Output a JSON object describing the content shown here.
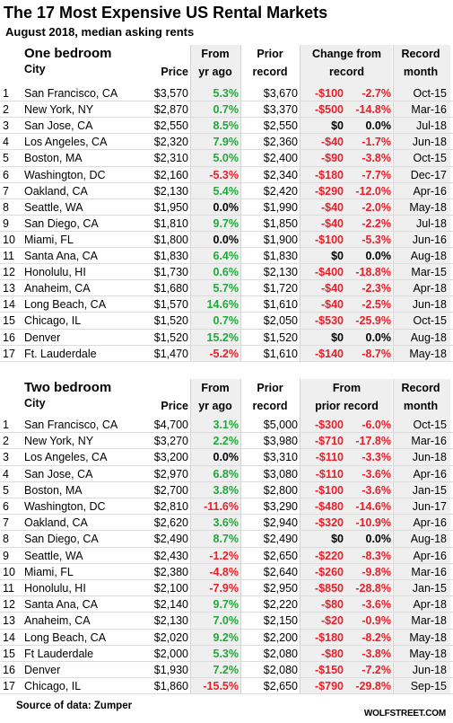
{
  "header": {
    "title": "The 17 Most Expensive US Rental Markets",
    "subtitle": "August 2018, median asking rents"
  },
  "sections": [
    {
      "title": "One bedroom",
      "headers": {
        "city": "City",
        "price": "Price",
        "yoy": [
          "From",
          "yr ago"
        ],
        "prior": [
          "Prior",
          "record"
        ],
        "change": [
          "Change from",
          "record"
        ],
        "month": [
          "Record",
          "month"
        ]
      },
      "rows": [
        [
          "1",
          "San Francisco, CA",
          "$3,570",
          "5.3%",
          "$3,670",
          "-$100",
          "-2.7%",
          "Oct-15"
        ],
        [
          "2",
          "New York, NY",
          "$2,870",
          "0.7%",
          "$3,370",
          "-$500",
          "-14.8%",
          "Mar-16"
        ],
        [
          "3",
          "San Jose, CA",
          "$2,550",
          "8.5%",
          "$2,550",
          "$0",
          "0.0%",
          "Jul-18"
        ],
        [
          "4",
          "Los Angeles, CA",
          "$2,320",
          "7.9%",
          "$2,360",
          "-$40",
          "-1.7%",
          "Jun-18"
        ],
        [
          "5",
          "Boston, MA",
          "$2,310",
          "5.0%",
          "$2,400",
          "-$90",
          "-3.8%",
          "Oct-15"
        ],
        [
          "6",
          "Washington, DC",
          "$2,160",
          "-5.3%",
          "$2,340",
          "-$180",
          "-7.7%",
          "Dec-17"
        ],
        [
          "7",
          "Oakland, CA",
          "$2,130",
          "5.4%",
          "$2,420",
          "-$290",
          "-12.0%",
          "Apr-16"
        ],
        [
          "8",
          "Seattle, WA",
          "$1,950",
          "0.0%",
          "$1,990",
          "-$40",
          "-2.0%",
          "May-18"
        ],
        [
          "9",
          "San Diego, CA",
          "$1,810",
          "9.7%",
          "$1,850",
          "-$40",
          "-2.2%",
          "Jul-18"
        ],
        [
          "10",
          "Miami, FL",
          "$1,800",
          "0.0%",
          "$1,900",
          "-$100",
          "-5.3%",
          "Jun-16"
        ],
        [
          "11",
          "Santa Ana, CA",
          "$1,830",
          "6.4%",
          "$1,830",
          "$0",
          "0.0%",
          "Aug-18"
        ],
        [
          "12",
          "Honolulu, HI",
          "$1,730",
          "0.6%",
          "$2,130",
          "-$400",
          "-18.8%",
          "Mar-15"
        ],
        [
          "13",
          "Anaheim, CA",
          "$1,680",
          "5.7%",
          "$1,720",
          "-$40",
          "-2.3%",
          "Apr-18"
        ],
        [
          "14",
          "Long Beach, CA",
          "$1,570",
          "14.6%",
          "$1,610",
          "-$40",
          "-2.5%",
          "Jun-18"
        ],
        [
          "15",
          "Chicago, IL",
          "$1,520",
          "0.7%",
          "$2,050",
          "-$530",
          "-25.9%",
          "Oct-15"
        ],
        [
          "16",
          "Denver",
          "$1,520",
          "15.2%",
          "$1,520",
          "$0",
          "0.0%",
          "Aug-18"
        ],
        [
          "17",
          "Ft. Lauderdale",
          "$1,470",
          "-5.2%",
          "$1,610",
          "-$140",
          "-8.7%",
          "May-18"
        ]
      ]
    },
    {
      "title": "Two bedroom",
      "headers": {
        "city": "City",
        "price": "Price",
        "yoy": [
          "From",
          "yr ago"
        ],
        "prior": [
          "Prior",
          "record"
        ],
        "change": [
          "From",
          "prior record"
        ],
        "month": [
          "Record",
          "month"
        ]
      },
      "rows": [
        [
          "1",
          "San Francisco, CA",
          "$4,700",
          "3.1%",
          "$5,000",
          "-$300",
          "-6.0%",
          "Oct-15"
        ],
        [
          "2",
          "New York, NY",
          "$3,270",
          "2.2%",
          "$3,980",
          "-$710",
          "-17.8%",
          "Mar-16"
        ],
        [
          "3",
          "Los Angeles, CA",
          "$3,200",
          "0.0%",
          "$3,310",
          "-$110",
          "-3.3%",
          "Jun-18"
        ],
        [
          "4",
          "San Jose, CA",
          "$2,970",
          "6.8%",
          "$3,080",
          "-$110",
          "-3.6%",
          "Apr-16"
        ],
        [
          "5",
          "Boston, MA",
          "$2,700",
          "3.8%",
          "$2,800",
          "-$100",
          "-3.6%",
          "Jan-15"
        ],
        [
          "6",
          "Washington, DC",
          "$2,810",
          "-11.6%",
          "$3,290",
          "-$480",
          "-14.6%",
          "Jun-17"
        ],
        [
          "7",
          "Oakland, CA",
          "$2,620",
          "3.6%",
          "$2,940",
          "-$320",
          "-10.9%",
          "Apr-16"
        ],
        [
          "8",
          "San Diego, CA",
          "$2,490",
          "8.7%",
          "$2,490",
          "$0",
          "0.0%",
          "Aug-18"
        ],
        [
          "9",
          "Seattle, WA",
          "$2,430",
          "-1.2%",
          "$2,650",
          "-$220",
          "-8.3%",
          "Apr-16"
        ],
        [
          "10",
          "Miami, FL",
          "$2,380",
          "-4.8%",
          "$2,640",
          "-$260",
          "-9.8%",
          "Mar-16"
        ],
        [
          "11",
          "Honolulu, HI",
          "$2,100",
          "-7.9%",
          "$2,950",
          "-$850",
          "-28.8%",
          "Jan-15"
        ],
        [
          "12",
          "Santa Ana, CA",
          "$2,140",
          "9.7%",
          "$2,220",
          "-$80",
          "-3.6%",
          "Apr-18"
        ],
        [
          "13",
          "Anaheim, CA",
          "$2,130",
          "7.0%",
          "$2,150",
          "-$20",
          "-0.9%",
          "Mar-18"
        ],
        [
          "14",
          "Long Beach, CA",
          "$2,020",
          "9.2%",
          "$2,200",
          "-$180",
          "-8.2%",
          "May-18"
        ],
        [
          "15",
          "Ft Lauderdale",
          "$2,000",
          "5.3%",
          "$2,080",
          "-$80",
          "-3.8%",
          "May-18"
        ],
        [
          "16",
          "Denver",
          "$1,930",
          "7.2%",
          "$2,080",
          "-$150",
          "-7.2%",
          "Jun-18"
        ],
        [
          "17",
          "Chicago, IL",
          "$1,860",
          "-15.5%",
          "$2,650",
          "-$790",
          "-29.8%",
          "Sep-15"
        ]
      ]
    }
  ],
  "footer": {
    "source": "Source of data: Zumper",
    "brand": "WOLFSTREET.COM"
  }
}
